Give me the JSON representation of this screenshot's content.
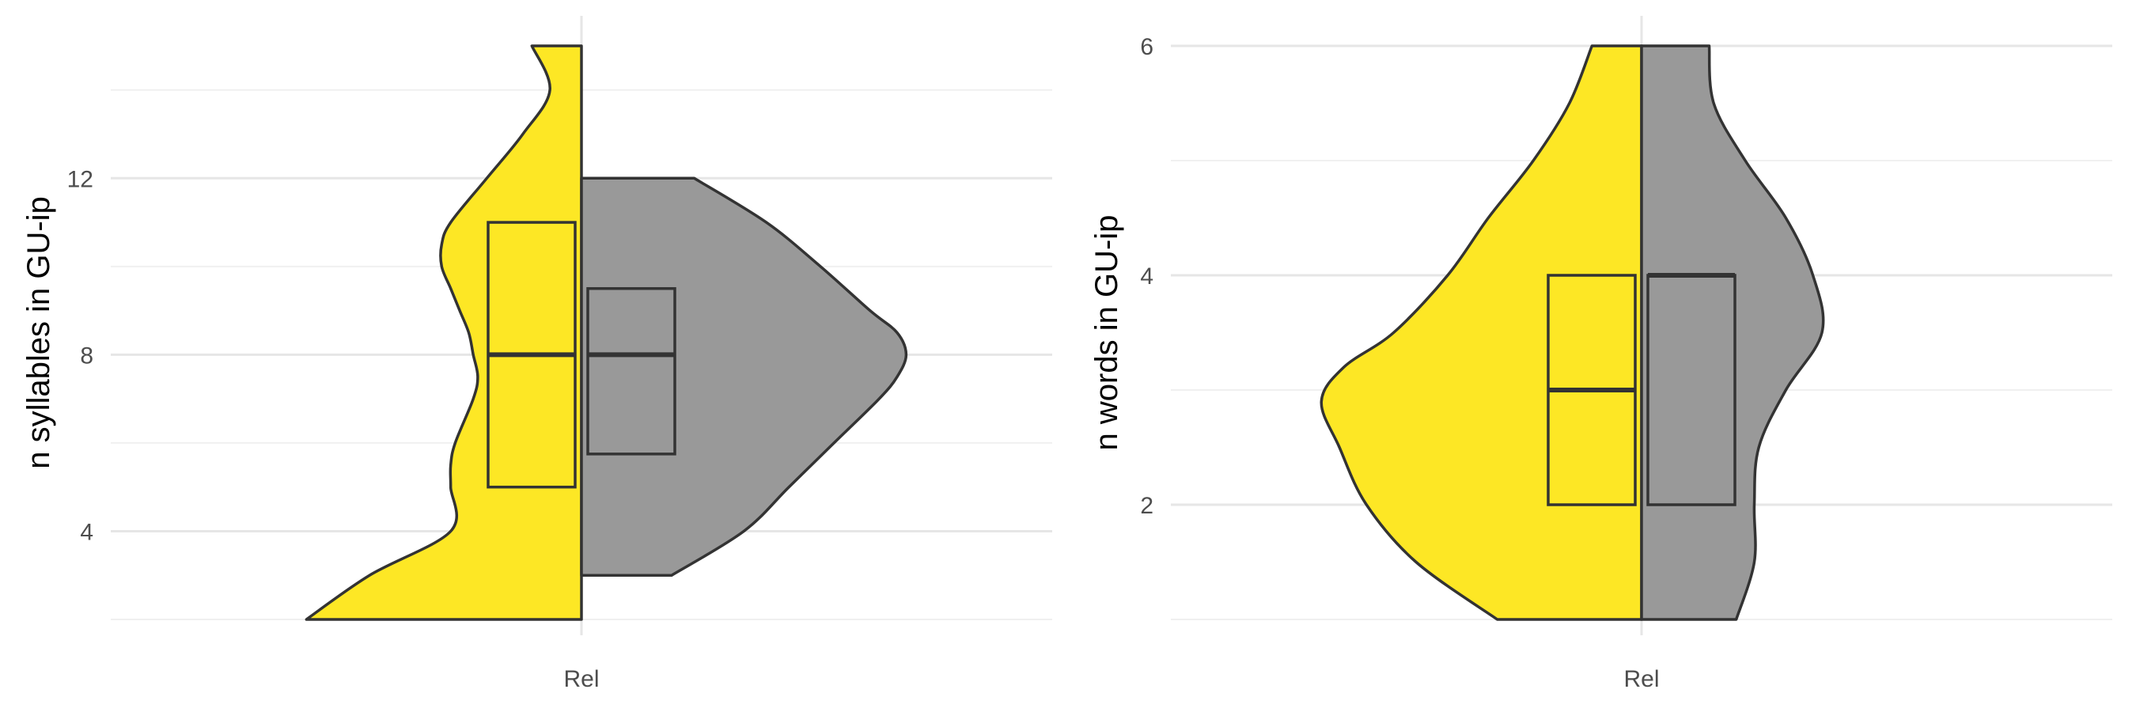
{
  "colors": {
    "group_a": "#FDE725",
    "group_b": "#999999",
    "outline": "#333333",
    "grid": "#e6e6e6",
    "background": "#ffffff"
  },
  "chart_data": [
    {
      "type": "violin",
      "title": "",
      "xlabel": "",
      "ylabel": "n syllables in GU-ip",
      "categories": [
        "Rel"
      ],
      "ylim": [
        2,
        15
      ],
      "yticks": [
        4,
        8,
        12
      ],
      "grid": true,
      "series": [
        {
          "side": "left",
          "color": "#FDE725",
          "density": [
            [
              2,
              0.61
            ],
            [
              3,
              0.47
            ],
            [
              4,
              0.29
            ],
            [
              5,
              0.29
            ],
            [
              5.5,
              0.29
            ],
            [
              6,
              0.28
            ],
            [
              7,
              0.24
            ],
            [
              7.5,
              0.23
            ],
            [
              8,
              0.24
            ],
            [
              8.5,
              0.25
            ],
            [
              9,
              0.27
            ],
            [
              9.5,
              0.29
            ],
            [
              10,
              0.31
            ],
            [
              10.5,
              0.31
            ],
            [
              11,
              0.29
            ],
            [
              12,
              0.21
            ],
            [
              13,
              0.13
            ],
            [
              14,
              0.07
            ],
            [
              15,
              0.11
            ]
          ],
          "box": {
            "q1": 5,
            "median": 8,
            "q3": 11
          }
        },
        {
          "side": "right",
          "color": "#999999",
          "density": [
            [
              3,
              0.2
            ],
            [
              4,
              0.36
            ],
            [
              5,
              0.46
            ],
            [
              6,
              0.56
            ],
            [
              7,
              0.66
            ],
            [
              7.5,
              0.7
            ],
            [
              8,
              0.72
            ],
            [
              8.5,
              0.7
            ],
            [
              9,
              0.64
            ],
            [
              10,
              0.53
            ],
            [
              11,
              0.41
            ],
            [
              12,
              0.25
            ]
          ],
          "box": {
            "q1": 5.75,
            "median": 8,
            "q3": 9.5
          }
        }
      ]
    },
    {
      "type": "violin",
      "title": "",
      "xlabel": "",
      "ylabel": "n words in GU-ip",
      "categories": [
        "Rel"
      ],
      "ylim": [
        1,
        6
      ],
      "yticks": [
        2,
        4,
        6
      ],
      "grid": true,
      "series": [
        {
          "side": "left",
          "color": "#FDE725",
          "density": [
            [
              1,
              0.32
            ],
            [
              1.5,
              0.5
            ],
            [
              2,
              0.61
            ],
            [
              2.5,
              0.67
            ],
            [
              2.9,
              0.71
            ],
            [
              3.2,
              0.66
            ],
            [
              3.5,
              0.55
            ],
            [
              4,
              0.43
            ],
            [
              4.5,
              0.34
            ],
            [
              5,
              0.24
            ],
            [
              5.5,
              0.16
            ],
            [
              6,
              0.11
            ]
          ],
          "box": {
            "q1": 2,
            "median": 3,
            "q3": 4
          }
        },
        {
          "side": "right",
          "color": "#999999",
          "density": [
            [
              1,
              0.21
            ],
            [
              1.5,
              0.25
            ],
            [
              2,
              0.25
            ],
            [
              2.5,
              0.26
            ],
            [
              3,
              0.32
            ],
            [
              3.5,
              0.4
            ],
            [
              4,
              0.38
            ],
            [
              4.5,
              0.32
            ],
            [
              5,
              0.23
            ],
            [
              5.5,
              0.16
            ],
            [
              6,
              0.15
            ]
          ],
          "box": {
            "q1": 2,
            "median": 4,
            "q3": 4
          }
        }
      ]
    }
  ]
}
